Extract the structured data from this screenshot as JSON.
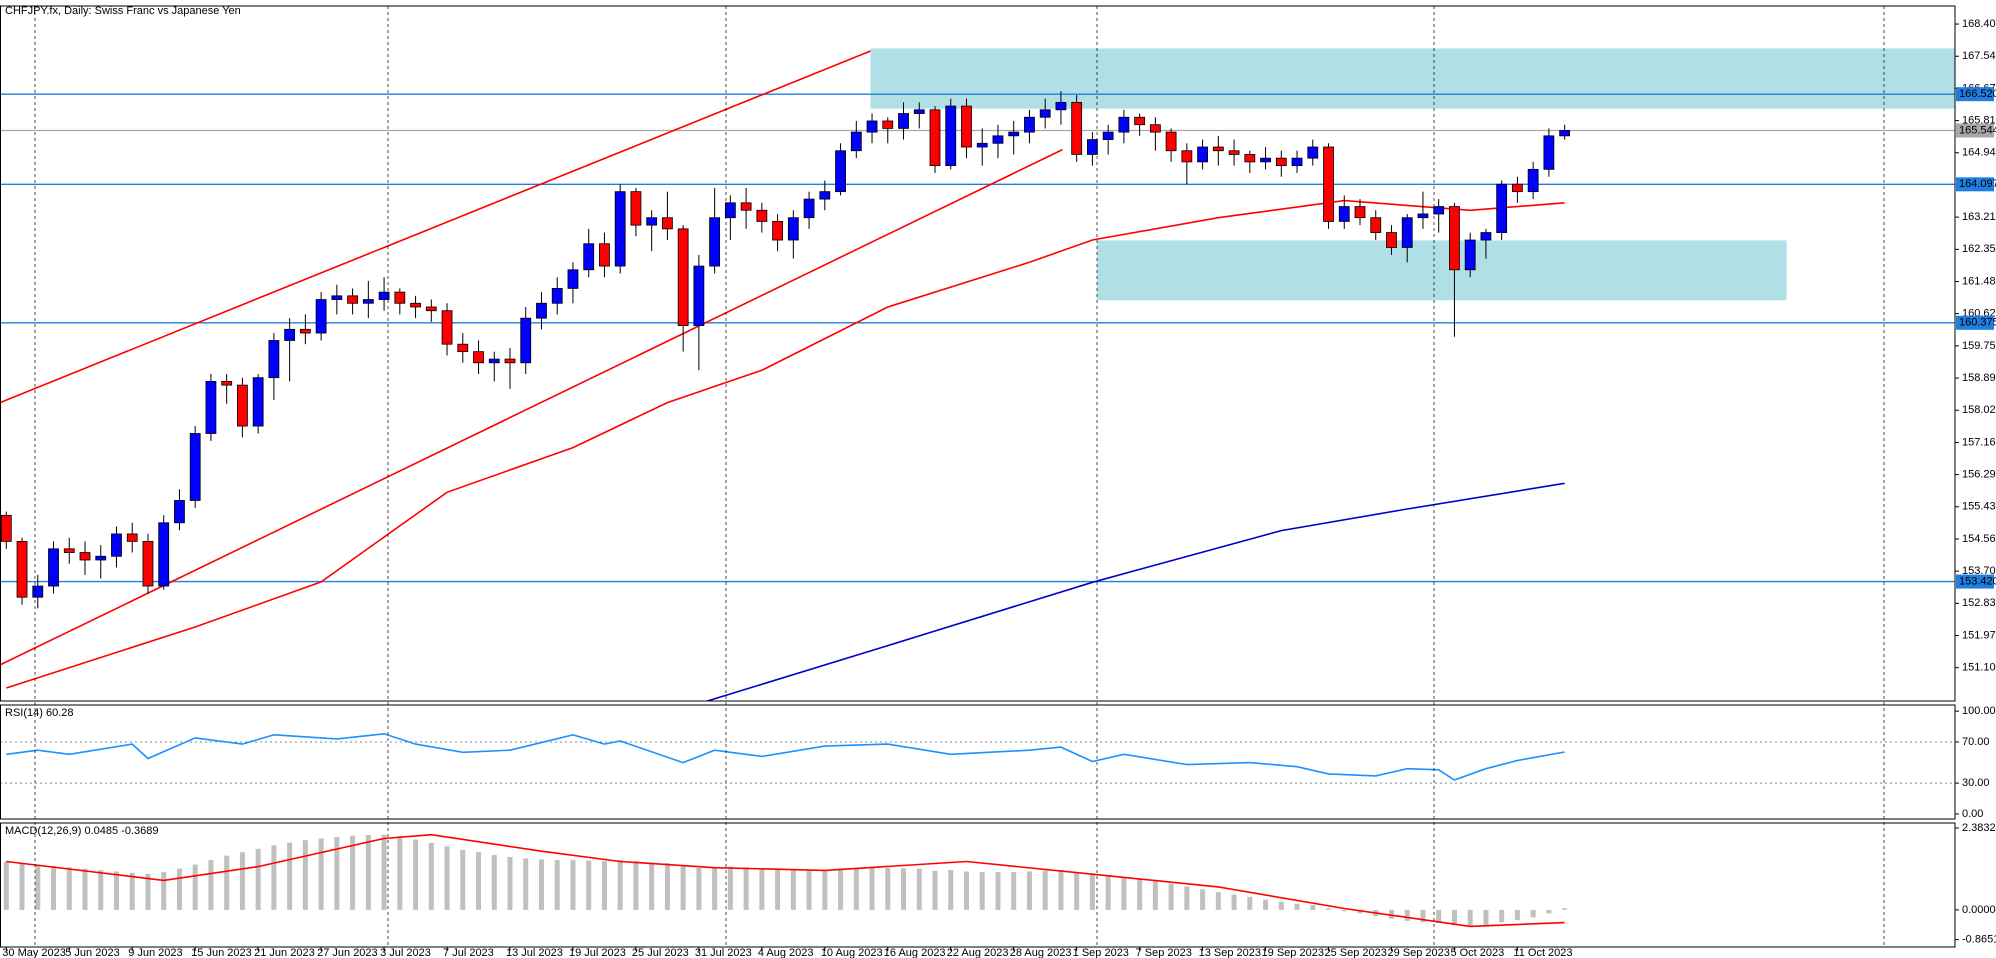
{
  "chart_data": [
    {
      "type": "candlestick",
      "title": "CHFJPY.fx, Daily:  Swiss Franc vs Japanese Yen",
      "up_color": "#0000ff",
      "down_color": "#ff0000",
      "xlim": [
        -0.4,
        123.8
      ],
      "ylim": [
        150.21,
        168.89
      ],
      "yticks": [
        168.405,
        {
          "value": 167.54,
          "label": "167.540"
        },
        166.675,
        {
          "value": 165.81,
          "label": "165.810"
        },
        164.945,
        163.215,
        {
          "value": 162.35,
          "label": "162.350"
        },
        161.485,
        {
          "value": 160.62,
          "label": "160.620"
        },
        159.755,
        {
          "value": 158.89,
          "label": "158.890"
        },
        158.025,
        {
          "value": 157.16,
          "label": "157.160"
        },
        156.295,
        {
          "value": 155.43,
          "label": "155.430"
        },
        154.565,
        {
          "value": 153.7,
          "label": "153.700"
        },
        152.835,
        {
          "value": 151.97,
          "label": "151.970"
        },
        151.105
      ],
      "xticks": [
        {
          "value": 0,
          "label": "30 May 2023"
        },
        {
          "value": 4,
          "label": "5 Jun 2023"
        },
        {
          "value": 8,
          "label": "9 Jun 2023"
        },
        {
          "value": 12,
          "label": "15 Jun 2023"
        },
        {
          "value": 16,
          "label": "21 Jun 2023"
        },
        {
          "value": 20,
          "label": "27 Jun 2023"
        },
        {
          "value": 24,
          "label": "3 Jul 2023"
        },
        {
          "value": 28,
          "label": "7 Jul 2023"
        },
        {
          "value": 32,
          "label": "13 Jul 2023"
        },
        {
          "value": 36,
          "label": "19 Jul 2023"
        },
        {
          "value": 40,
          "label": "25 Jul 2023"
        },
        {
          "value": 44,
          "label": "31 Jul 2023"
        },
        {
          "value": 48,
          "label": "4 Aug 2023"
        },
        {
          "value": 52,
          "label": "10 Aug 2023"
        },
        {
          "value": 56,
          "label": "16 Aug 2023"
        },
        {
          "value": 60,
          "label": "22 Aug 2023"
        },
        {
          "value": 64,
          "label": "28 Aug 2023"
        },
        {
          "value": 68,
          "label": "1 Sep 2023"
        },
        {
          "value": 72,
          "label": "7 Sep 2023"
        },
        {
          "value": 76,
          "label": "13 Sep 2023"
        },
        {
          "value": 80,
          "label": "19 Sep 2023"
        },
        {
          "value": 84,
          "label": "25 Sep 2023"
        },
        {
          "value": 88,
          "label": "29 Sep 2023"
        },
        {
          "value": 92,
          "label": "5 Oct 2023"
        },
        {
          "value": 96,
          "label": "11 Oct 2023"
        }
      ],
      "levels": [
        {
          "value": 166.52,
          "label": "166.520",
          "color": "#1e7fe0"
        },
        {
          "value": 165.544,
          "color": "#a8a8a8"
        },
        {
          "value": 164.097,
          "color": "#1e7fe0"
        },
        {
          "value": 160.375,
          "color": "#1e7fe0"
        },
        {
          "value": 153.42,
          "label": "153.420",
          "color": "#1e7fe0"
        }
      ],
      "zones": [
        {
          "x": [
            54.9,
            123.8
          ],
          "y": [
            166.13,
            167.75
          ],
          "color": "#b0e0e6"
        },
        {
          "x": [
            69.3,
            113.1
          ],
          "y": [
            160.98,
            162.59
          ],
          "color": "#b0e0e6"
        }
      ],
      "trendlines": [
        {
          "x": [
            -0.4,
            54.9
          ],
          "y": [
            158.23,
            167.68
          ],
          "color": "#ff0000"
        },
        {
          "x": [
            -0.4,
            67.1
          ],
          "y": [
            151.18,
            165.03
          ],
          "color": "#ff0000"
        }
      ],
      "series": [
        {
          "color": "#ff0000",
          "x": [
            0,
            12,
            20,
            28,
            36,
            42,
            48,
            56,
            65,
            69,
            77,
            85,
            93,
            99
          ],
          "values": [
            150.56,
            152.2,
            153.41,
            155.82,
            157.02,
            158.23,
            159.1,
            160.8,
            162.0,
            162.6,
            163.2,
            163.66,
            163.4,
            163.6
          ]
        },
        {
          "color": "#0000cc",
          "x": [
            44,
            56,
            69,
            81,
            89,
            99
          ],
          "values": [
            150.14,
            151.7,
            153.4,
            154.79,
            155.37,
            156.06
          ]
        }
      ],
      "candles": [
        [
          155.2,
          155.3,
          154.3,
          154.5
        ],
        [
          154.5,
          154.6,
          152.8,
          153.0
        ],
        [
          153.0,
          153.6,
          152.7,
          153.3
        ],
        [
          153.3,
          154.5,
          153.1,
          154.3
        ],
        [
          154.3,
          154.6,
          153.9,
          154.2
        ],
        [
          154.2,
          154.5,
          153.6,
          154.0
        ],
        [
          154.0,
          154.4,
          153.5,
          154.1
        ],
        [
          154.1,
          154.9,
          153.8,
          154.7
        ],
        [
          154.7,
          155.0,
          154.2,
          154.5
        ],
        [
          154.5,
          154.7,
          153.1,
          153.3
        ],
        [
          153.3,
          155.2,
          153.2,
          155.0
        ],
        [
          155.0,
          155.9,
          154.8,
          155.6
        ],
        [
          155.6,
          157.6,
          155.4,
          157.4
        ],
        [
          157.4,
          159.0,
          157.2,
          158.8
        ],
        [
          158.8,
          159.0,
          158.2,
          158.7
        ],
        [
          158.7,
          158.9,
          157.3,
          157.6
        ],
        [
          157.6,
          159.0,
          157.4,
          158.9
        ],
        [
          158.9,
          160.1,
          158.3,
          159.9
        ],
        [
          159.9,
          160.5,
          158.8,
          160.2
        ],
        [
          160.2,
          160.6,
          159.8,
          160.1
        ],
        [
          160.1,
          161.2,
          159.9,
          161.0
        ],
        [
          161.0,
          161.4,
          160.6,
          161.1
        ],
        [
          161.1,
          161.3,
          160.6,
          160.9
        ],
        [
          160.9,
          161.5,
          160.5,
          161.0
        ],
        [
          161.0,
          161.6,
          160.7,
          161.2
        ],
        [
          161.2,
          161.3,
          160.6,
          160.9
        ],
        [
          160.9,
          161.1,
          160.5,
          160.8
        ],
        [
          160.8,
          161.0,
          160.4,
          160.7
        ],
        [
          160.7,
          160.9,
          159.5,
          159.8
        ],
        [
          159.8,
          160.1,
          159.3,
          159.6
        ],
        [
          159.6,
          159.9,
          159.0,
          159.3
        ],
        [
          159.3,
          159.6,
          158.8,
          159.4
        ],
        [
          159.4,
          159.7,
          158.6,
          159.3
        ],
        [
          159.3,
          160.8,
          159.0,
          160.5
        ],
        [
          160.5,
          161.2,
          160.2,
          160.9
        ],
        [
          160.9,
          161.6,
          160.6,
          161.3
        ],
        [
          161.3,
          162.0,
          160.9,
          161.8
        ],
        [
          161.8,
          162.9,
          161.6,
          162.5
        ],
        [
          162.5,
          162.8,
          161.6,
          161.9
        ],
        [
          161.9,
          164.1,
          161.7,
          163.9
        ],
        [
          163.9,
          164.0,
          162.7,
          163.0
        ],
        [
          163.0,
          163.4,
          162.3,
          163.2
        ],
        [
          163.2,
          163.9,
          162.6,
          162.9
        ],
        [
          162.9,
          163.0,
          159.6,
          160.3
        ],
        [
          160.3,
          162.2,
          159.1,
          161.9
        ],
        [
          161.9,
          164.0,
          161.7,
          163.2
        ],
        [
          163.2,
          163.8,
          162.6,
          163.6
        ],
        [
          163.6,
          164.0,
          162.9,
          163.4
        ],
        [
          163.4,
          163.6,
          162.8,
          163.1
        ],
        [
          163.1,
          163.3,
          162.3,
          162.6
        ],
        [
          162.6,
          163.4,
          162.1,
          163.2
        ],
        [
          163.2,
          163.9,
          162.9,
          163.7
        ],
        [
          163.7,
          164.2,
          163.4,
          163.9
        ],
        [
          163.9,
          165.2,
          163.8,
          165.0
        ],
        [
          165.0,
          165.8,
          164.8,
          165.5
        ],
        [
          165.5,
          166.0,
          165.2,
          165.8
        ],
        [
          165.8,
          165.9,
          165.2,
          165.6
        ],
        [
          165.6,
          166.3,
          165.3,
          166.0
        ],
        [
          166.0,
          166.3,
          165.6,
          166.1
        ],
        [
          166.1,
          166.2,
          164.4,
          164.6
        ],
        [
          164.6,
          166.4,
          164.5,
          166.2
        ],
        [
          166.2,
          166.4,
          164.8,
          165.1
        ],
        [
          165.1,
          165.6,
          164.6,
          165.2
        ],
        [
          165.2,
          165.7,
          164.8,
          165.4
        ],
        [
          165.4,
          165.8,
          164.9,
          165.5
        ],
        [
          165.5,
          166.1,
          165.2,
          165.9
        ],
        [
          165.9,
          166.4,
          165.6,
          166.1
        ],
        [
          166.1,
          166.6,
          165.7,
          166.3
        ],
        [
          166.3,
          166.5,
          164.7,
          164.9
        ],
        [
          164.9,
          165.5,
          164.6,
          165.3
        ],
        [
          165.3,
          165.7,
          164.9,
          165.5
        ],
        [
          165.5,
          166.1,
          165.2,
          165.9
        ],
        [
          165.9,
          166.0,
          165.4,
          165.7
        ],
        [
          165.7,
          165.9,
          165.0,
          165.5
        ],
        [
          165.5,
          165.6,
          164.7,
          165.0
        ],
        [
          165.0,
          165.2,
          164.1,
          164.7
        ],
        [
          164.7,
          165.3,
          164.5,
          165.1
        ],
        [
          165.1,
          165.4,
          164.6,
          165.0
        ],
        [
          165.0,
          165.3,
          164.6,
          164.9
        ],
        [
          164.9,
          165.0,
          164.4,
          164.7
        ],
        [
          164.7,
          165.1,
          164.5,
          164.8
        ],
        [
          164.8,
          165.0,
          164.3,
          164.6
        ],
        [
          164.6,
          165.0,
          164.4,
          164.8
        ],
        [
          164.8,
          165.3,
          164.6,
          165.1
        ],
        [
          165.1,
          165.2,
          162.9,
          163.1
        ],
        [
          163.1,
          163.8,
          162.9,
          163.5
        ],
        [
          163.5,
          163.7,
          163.0,
          163.2
        ],
        [
          163.2,
          163.4,
          162.6,
          162.8
        ],
        [
          162.8,
          163.0,
          162.2,
          162.4
        ],
        [
          162.4,
          163.3,
          162.0,
          163.2
        ],
        [
          163.2,
          163.9,
          162.9,
          163.3
        ],
        [
          163.3,
          163.7,
          162.8,
          163.5
        ],
        [
          163.5,
          163.6,
          160.0,
          161.8
        ],
        [
          161.8,
          162.8,
          161.6,
          162.6
        ],
        [
          162.6,
          162.9,
          162.1,
          162.8
        ],
        [
          162.8,
          164.2,
          162.6,
          164.1
        ],
        [
          164.1,
          164.3,
          163.6,
          163.9
        ],
        [
          163.9,
          164.7,
          163.7,
          164.5
        ],
        [
          164.5,
          165.6,
          164.3,
          165.4
        ],
        [
          165.4,
          165.7,
          165.3,
          165.544
        ]
      ]
    },
    {
      "type": "line",
      "title": "RSI(14) 60.28",
      "ylim": [
        -4.9,
        106
      ],
      "yticks": [
        {
          "value": 100,
          "label": "100.00"
        },
        {
          "value": 70,
          "label": "70.00"
        },
        {
          "value": 30,
          "label": "30.00"
        },
        {
          "value": 0,
          "label": "0.00"
        }
      ],
      "series": [
        {
          "color": "#1e90ff",
          "x": [
            0,
            2,
            4,
            8,
            9,
            12,
            15,
            17,
            21,
            24,
            26,
            29,
            32,
            36,
            38,
            39,
            43,
            45,
            48,
            52,
            56,
            60,
            65,
            67,
            69,
            71,
            75,
            79,
            82,
            84,
            87,
            89,
            91,
            92,
            94,
            96,
            99
          ],
          "values": [
            58,
            62,
            58,
            68,
            54,
            74,
            68,
            77,
            73,
            78,
            68,
            60,
            62,
            77,
            68,
            71,
            50,
            62,
            56,
            66,
            68,
            58,
            62,
            65,
            51,
            58,
            48,
            50,
            46,
            39,
            37,
            44,
            43,
            33,
            44,
            52,
            60.28
          ]
        }
      ]
    },
    {
      "type": "macd",
      "title": "MACD(12,26,9) 0.0485 -0.3689",
      "ylim": [
        -1.08,
        2.53
      ],
      "yticks": [
        2.3832,
        {
          "value": 0,
          "label": "0.0000"
        },
        -0.8651
      ],
      "bar_color": "#c0c0c0",
      "values": [
        1.4,
        1.36,
        1.32,
        1.28,
        1.24,
        1.2,
        1.16,
        1.12,
        1.08,
        1.05,
        1.1,
        1.2,
        1.32,
        1.45,
        1.58,
        1.68,
        1.78,
        1.88,
        1.96,
        2.03,
        2.08,
        2.12,
        2.16,
        2.18,
        2.19,
        2.15,
        2.05,
        1.95,
        1.85,
        1.75,
        1.68,
        1.6,
        1.54,
        1.5,
        1.47,
        1.45,
        1.45,
        1.44,
        1.42,
        1.45,
        1.42,
        1.38,
        1.36,
        1.28,
        1.22,
        1.24,
        1.26,
        1.24,
        1.2,
        1.16,
        1.15,
        1.16,
        1.17,
        1.2,
        1.22,
        1.24,
        1.22,
        1.21,
        1.2,
        1.14,
        1.16,
        1.12,
        1.1,
        1.1,
        1.1,
        1.12,
        1.14,
        1.16,
        1.08,
        1.02,
        0.98,
        0.95,
        0.9,
        0.84,
        0.76,
        0.68,
        0.6,
        0.52,
        0.45,
        0.38,
        0.3,
        0.24,
        0.18,
        0.14,
        0.04,
        -0.04,
        -0.1,
        -0.18,
        -0.26,
        -0.32,
        -0.36,
        -0.38,
        -0.45,
        -0.46,
        -0.44,
        -0.36,
        -0.3,
        -0.22,
        -0.1,
        0.0485
      ],
      "series": [
        {
          "color": "#ff0000",
          "x": [
            0,
            10,
            16,
            24,
            27,
            34,
            39,
            45,
            52,
            61,
            69,
            77,
            85,
            93,
            99
          ],
          "values": [
            1.41,
            0.86,
            1.26,
            2.08,
            2.19,
            1.71,
            1.41,
            1.23,
            1.15,
            1.41,
            1.04,
            0.67,
            0.04,
            -0.48,
            -0.3689
          ]
        }
      ]
    }
  ]
}
